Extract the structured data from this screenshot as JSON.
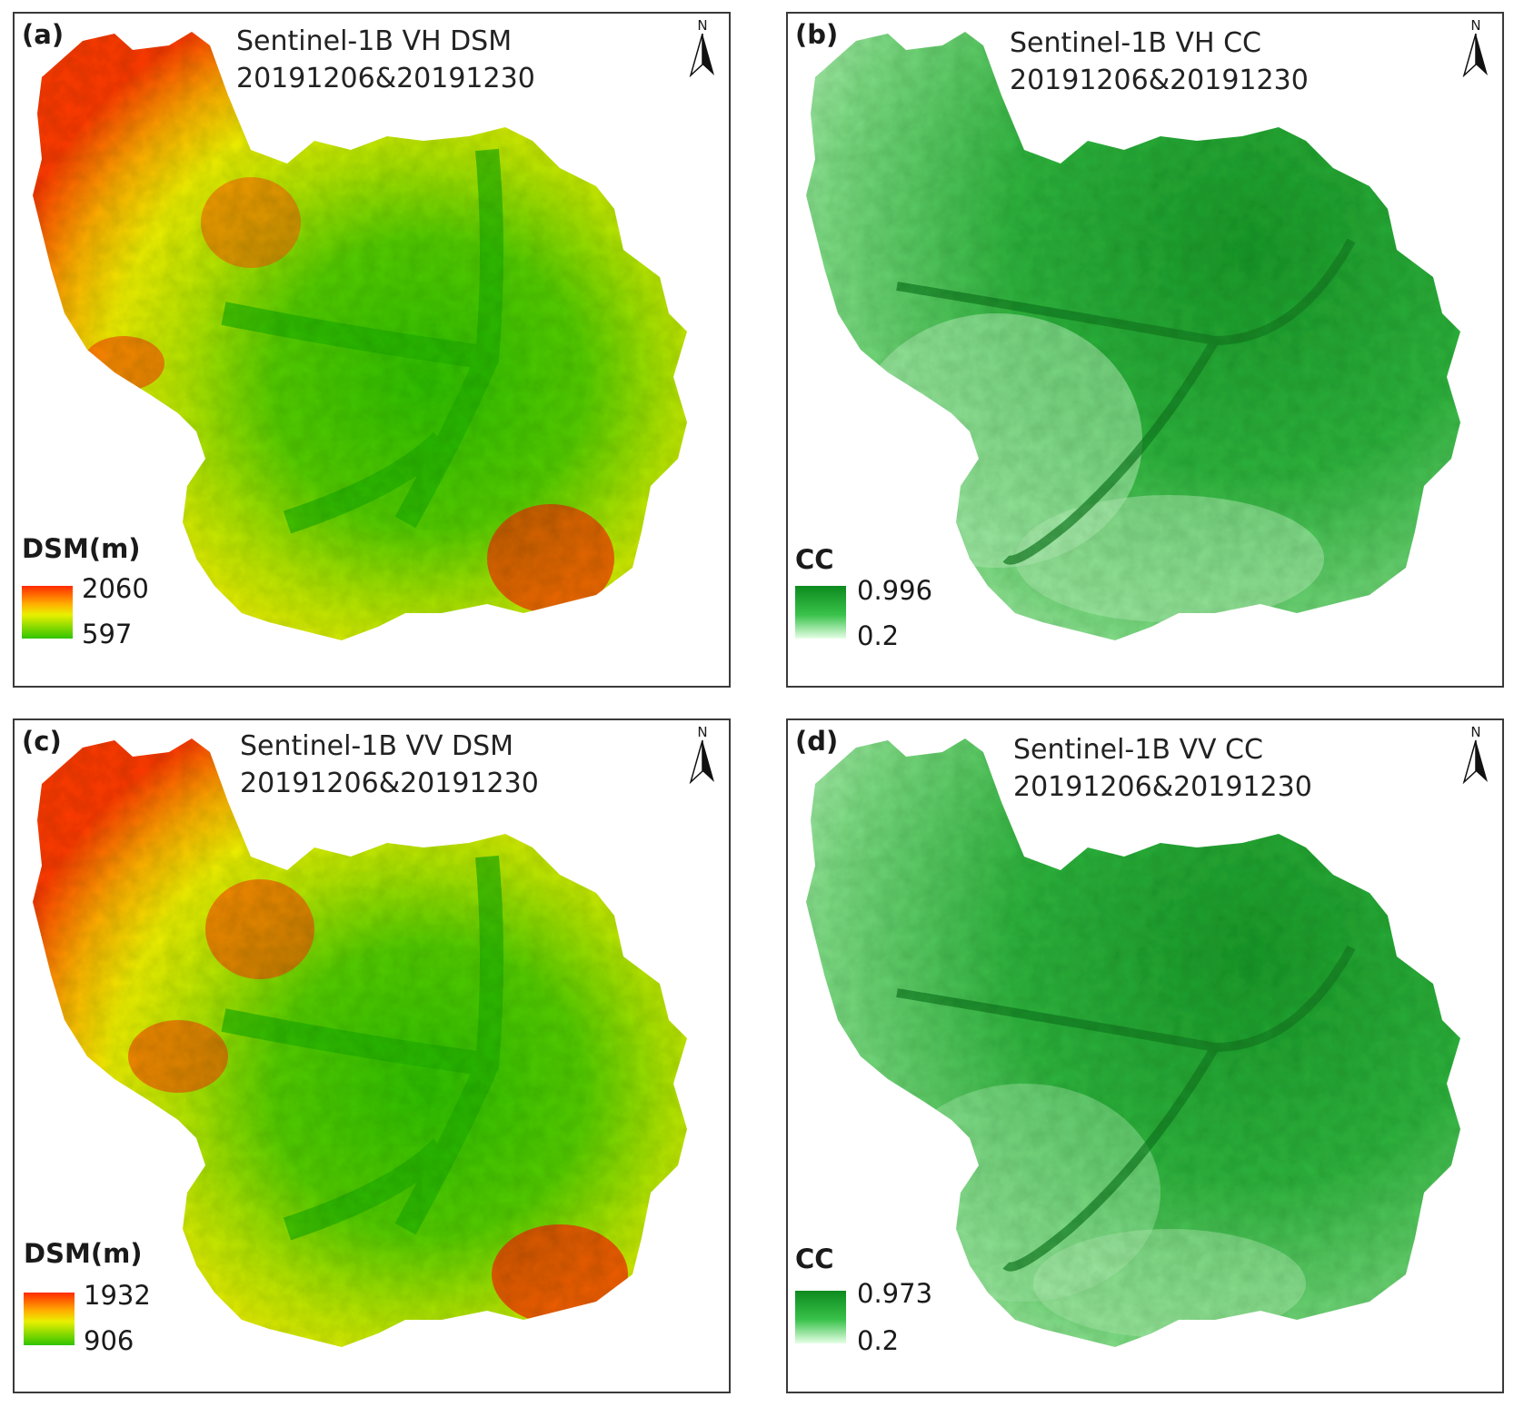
{
  "panels": {
    "a": {
      "tag": "(a)",
      "title_line1": "Sentinel-1B VH  DSM",
      "title_line2": "20191206&20191230",
      "legend_title": "DSM(m)",
      "legend_max": "2060",
      "legend_min": "597",
      "north": "N",
      "kind": "dsm"
    },
    "b": {
      "tag": "(b)",
      "title_line1": "Sentinel-1B VH CC",
      "title_line2": "20191206&20191230",
      "legend_title": "CC",
      "legend_max": "0.996",
      "legend_min": "0.2",
      "north": "N",
      "kind": "cc"
    },
    "c": {
      "tag": "(c)",
      "title_line1": "Sentinel-1B VV  DSM",
      "title_line2": "20191206&20191230",
      "legend_title": "DSM(m)",
      "legend_max": "1932",
      "legend_min": "906",
      "north": "N",
      "kind": "dsm"
    },
    "d": {
      "tag": "(d)",
      "title_line1": "Sentinel-1B VV CC",
      "title_line2": "20191206&20191230",
      "legend_title": "CC",
      "legend_max": "0.973",
      "legend_min": "0.2",
      "north": "N",
      "kind": "cc"
    }
  },
  "colors": {
    "dsm_high": "#ff2a00",
    "dsm_mid": "#e8f000",
    "dsm_low": "#30c400",
    "cc_high": "#0d8a1e",
    "cc_low": "#e6ffe6",
    "frame": "#3a3a3a"
  }
}
